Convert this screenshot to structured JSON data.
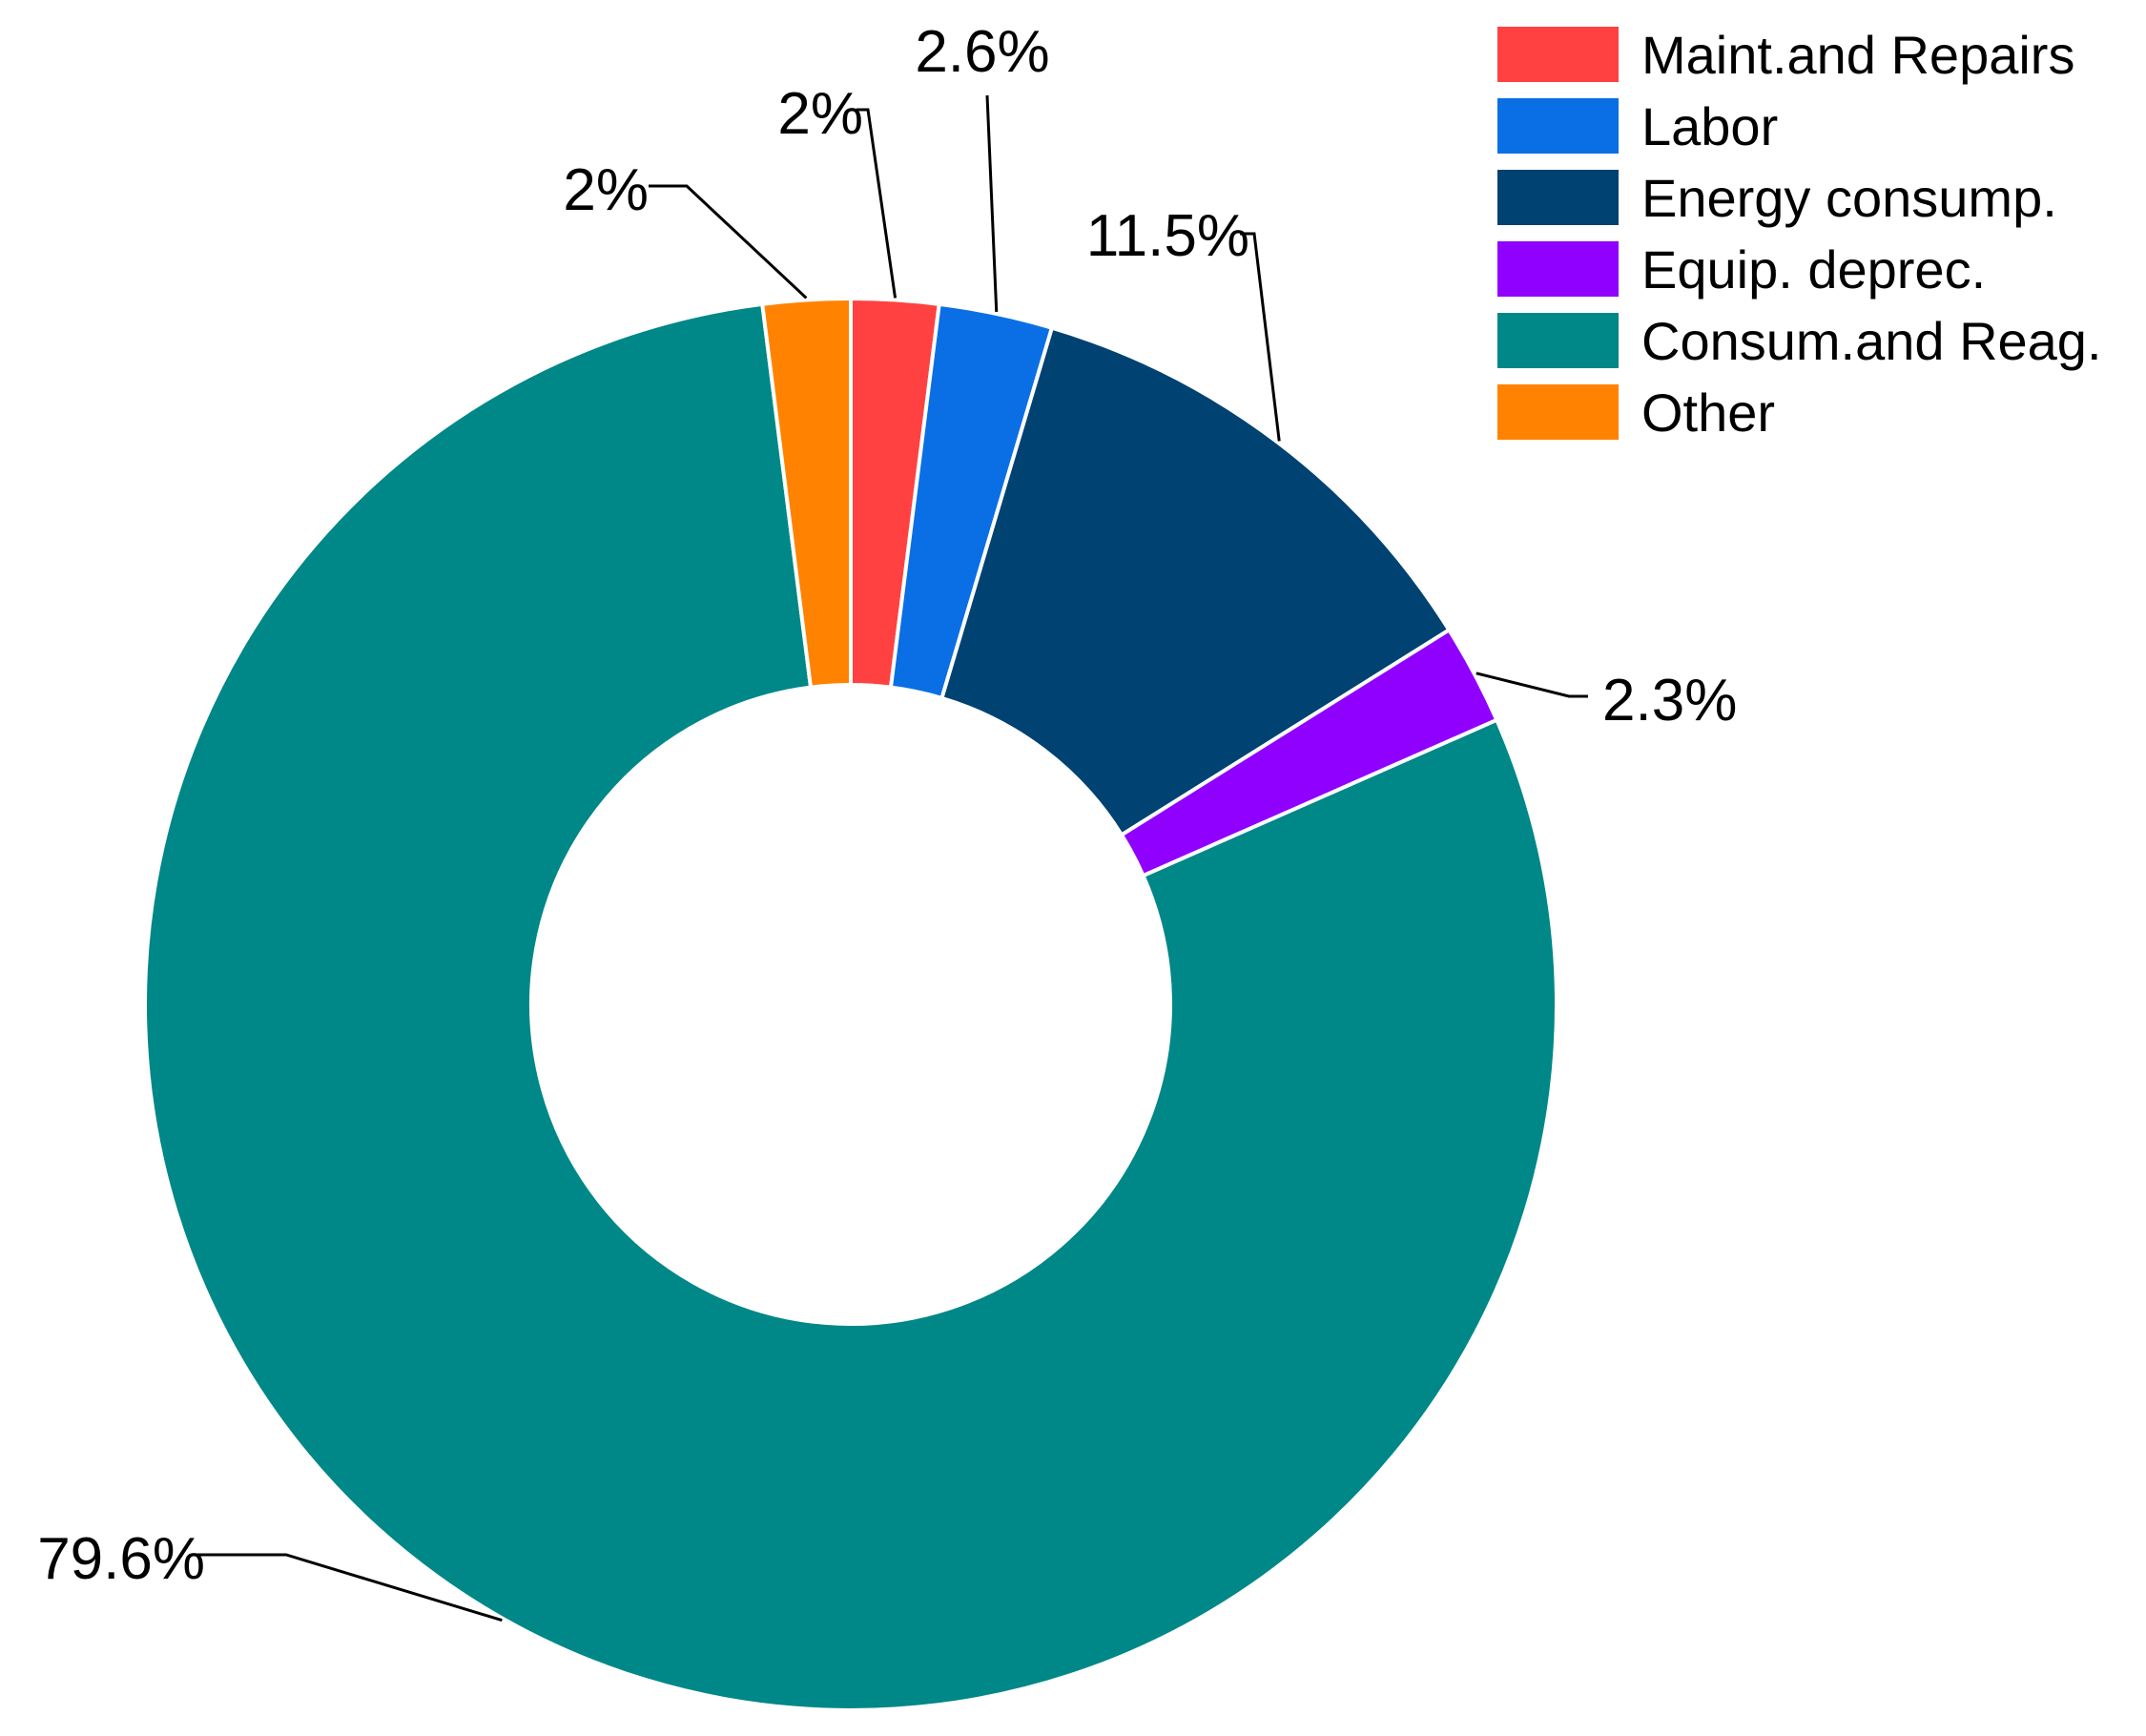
{
  "chart_data": {
    "type": "pie",
    "variant": "donut",
    "title": "",
    "start_angle_deg": 0,
    "direction": "clockwise",
    "legend_position": "top-right",
    "slices": [
      {
        "name": "Maint.and Repairs",
        "value": 2,
        "label": "2%",
        "color": "#FF4141"
      },
      {
        "name": "Labor",
        "value": 2.6,
        "label": "2.6%",
        "color": "#0A6FE4"
      },
      {
        "name": "Energy consump.",
        "value": 11.5,
        "label": "11.5%",
        "color": "#004272"
      },
      {
        "name": "Equip. deprec.",
        "value": 2.3,
        "label": "2.3%",
        "color": "#9000FF"
      },
      {
        "name": "Consum.and Reag.",
        "value": 79.6,
        "label": "79.6%",
        "color": "#008787"
      },
      {
        "name": "Other",
        "value": 2,
        "label": "2%",
        "color": "#FF8300"
      }
    ]
  }
}
